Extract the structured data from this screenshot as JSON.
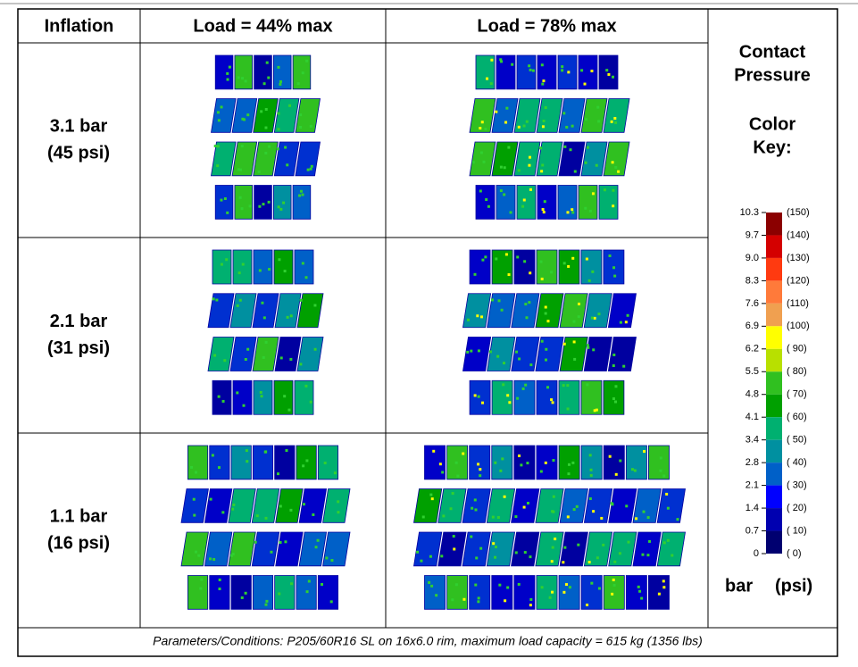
{
  "header": {
    "columns": [
      "Inflation",
      "Load = 44% max",
      "Load = 78% max"
    ]
  },
  "rows": [
    {
      "inflation": [
        "3.1 bar",
        "(45 psi)"
      ]
    },
    {
      "inflation": [
        "2.1 bar",
        "(31 psi)"
      ]
    },
    {
      "inflation": [
        "1.1 bar",
        "(16 psi)"
      ]
    }
  ],
  "key": {
    "title": [
      "Contact",
      "Pressure"
    ],
    "subtitle": [
      "Color",
      "Key:"
    ],
    "bar_labels": [
      "10.3",
      "9.7",
      "9.0",
      "8.3",
      "7.6",
      "6.9",
      "6.2",
      "5.5",
      "4.8",
      "4.1",
      "3.4",
      "2.8",
      "2.1",
      "1.4",
      "0.7",
      "0"
    ],
    "psi_labels": [
      "(150)",
      "(140)",
      "(130)",
      "(120)",
      "(110)",
      "(100)",
      "( 90)",
      "( 80)",
      "( 70)",
      "( 60)",
      "( 50)",
      "( 40)",
      "( 30)",
      "( 20)",
      "( 10)",
      "( 0)"
    ],
    "colors": [
      "#8b0000",
      "#d40000",
      "#ff3a10",
      "#ff7a3a",
      "#f0a050",
      "#ffff00",
      "#b8e000",
      "#30c020",
      "#00a000",
      "#00b070",
      "#0090a0",
      "#0060c8",
      "#0000ff",
      "#0000b0",
      "#000070"
    ],
    "units": [
      "bar",
      "(psi)"
    ]
  },
  "footer": "Parameters/Conditions:  P205/60R16 SL on 16x6.0 rim, maximum load capacity = 615 kg (1356 lbs)"
}
